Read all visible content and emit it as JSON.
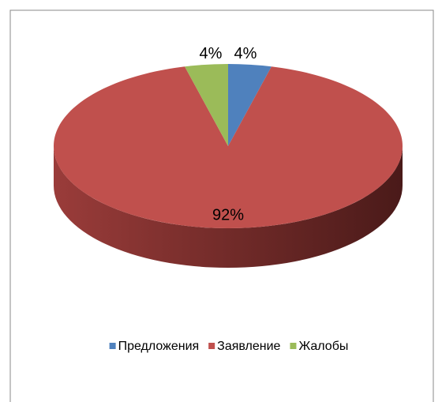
{
  "chart_data": {
    "type": "pie",
    "categories": [
      "Предложения",
      "Заявление",
      "Жалобы"
    ],
    "values": [
      4,
      92,
      4
    ],
    "value_labels": [
      "4%",
      "92%",
      "4%"
    ],
    "colors": [
      "#4f81bd",
      "#c0504d",
      "#9bbb59"
    ],
    "legend": "bottom"
  }
}
